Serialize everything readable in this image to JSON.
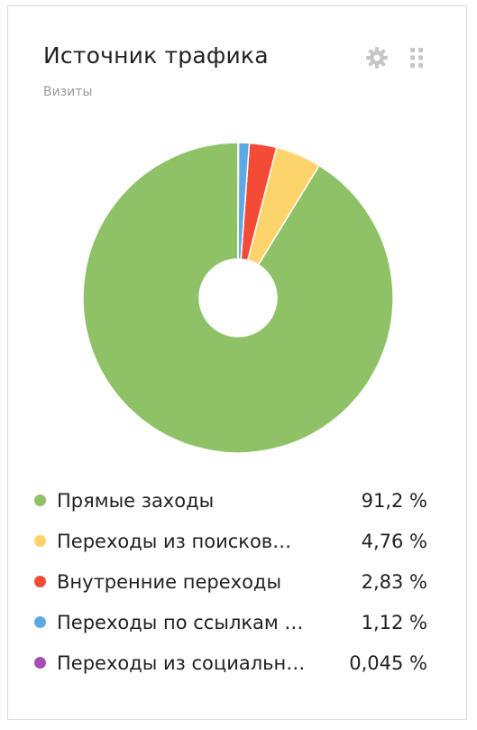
{
  "widget": {
    "title": "Источник трафика",
    "subtitle": "Визиты",
    "settings_icon": "gear-icon",
    "drag_icon": "grip-dots-icon"
  },
  "legend": {
    "items": [
      {
        "label": "Прямые заходы",
        "value": "91,2 %",
        "color": "#8fc267"
      },
      {
        "label": "Переходы из поисков…",
        "value": "4,76 %",
        "color": "#fdd46b"
      },
      {
        "label": "Внутренние переходы",
        "value": "2,83 %",
        "color": "#f44b36"
      },
      {
        "label": "Переходы по ссылкам …",
        "value": "1,12 %",
        "color": "#5da9e4"
      },
      {
        "label": "Переходы из социальн…",
        "value": "0,045 %",
        "color": "#a54fb2"
      }
    ]
  },
  "chart_data": {
    "type": "pie",
    "title": "Источник трафика",
    "subtitle": "Визиты",
    "donut": true,
    "categories": [
      "Прямые заходы",
      "Переходы из поисков…",
      "Внутренние переходы",
      "Переходы по ссылкам …",
      "Переходы из социальн…"
    ],
    "values": [
      91.2,
      4.76,
      2.83,
      1.12,
      0.045
    ],
    "colors": [
      "#8fc267",
      "#fdd46b",
      "#f44b36",
      "#5da9e4",
      "#a54fb2"
    ],
    "legend": "bottom"
  }
}
